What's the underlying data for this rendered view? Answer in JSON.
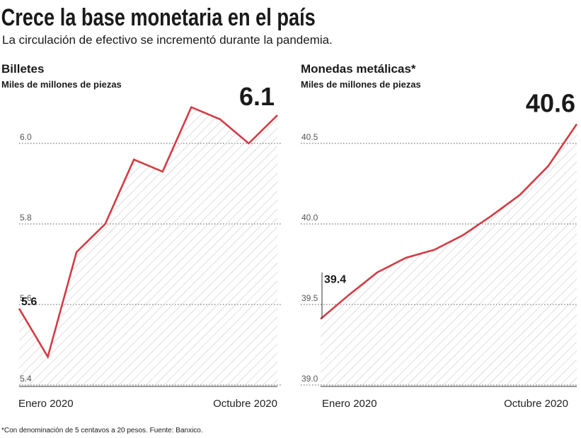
{
  "title": "Crece la base monetaria en el país",
  "subtitle": "La circulación de efectivo se incrementó durante la pandemia.",
  "note": "*Con denominación de 5 centavos a 20 pesos. Fuente: Banxico.",
  "chart_data": [
    {
      "type": "area",
      "title": "Billetes",
      "subtitle": "Miles de millones de piezas",
      "categories": [
        "Enero 2020",
        null,
        null,
        null,
        null,
        null,
        null,
        null,
        null,
        "Octubre 2020"
      ],
      "values": [
        5.59,
        5.47,
        5.73,
        5.8,
        5.96,
        5.93,
        6.09,
        6.06,
        6.0,
        6.07
      ],
      "value_labels": [
        "5.6",
        null,
        null,
        null,
        null,
        null,
        null,
        null,
        null,
        "6.1"
      ],
      "color": "#d23c44",
      "ylim": [
        5.4,
        6.1
      ],
      "yticks": [
        5.4,
        5.6,
        5.8,
        {
          "value": 6,
          "label": "6.0"
        }
      ],
      "grid": true
    },
    {
      "type": "area",
      "title": "Monedas metálicas*",
      "subtitle": "Miles de millones de piezas",
      "categories": [
        "Enero 2020",
        null,
        null,
        null,
        null,
        null,
        null,
        null,
        null,
        "Octubre 2020"
      ],
      "values": [
        39.41,
        39.56,
        39.7,
        39.79,
        39.84,
        39.93,
        40.05,
        40.18,
        40.36,
        40.62
      ],
      "value_labels": [
        "39.4",
        null,
        null,
        null,
        null,
        null,
        null,
        null,
        null,
        "40.6"
      ],
      "color": "#d23c44",
      "ylim": [
        39,
        40.7
      ],
      "yticks": [
        {
          "value": 39,
          "label": "39.0"
        },
        39.5,
        {
          "value": 40,
          "label": "40.0"
        },
        40.5
      ],
      "grid": true
    }
  ]
}
